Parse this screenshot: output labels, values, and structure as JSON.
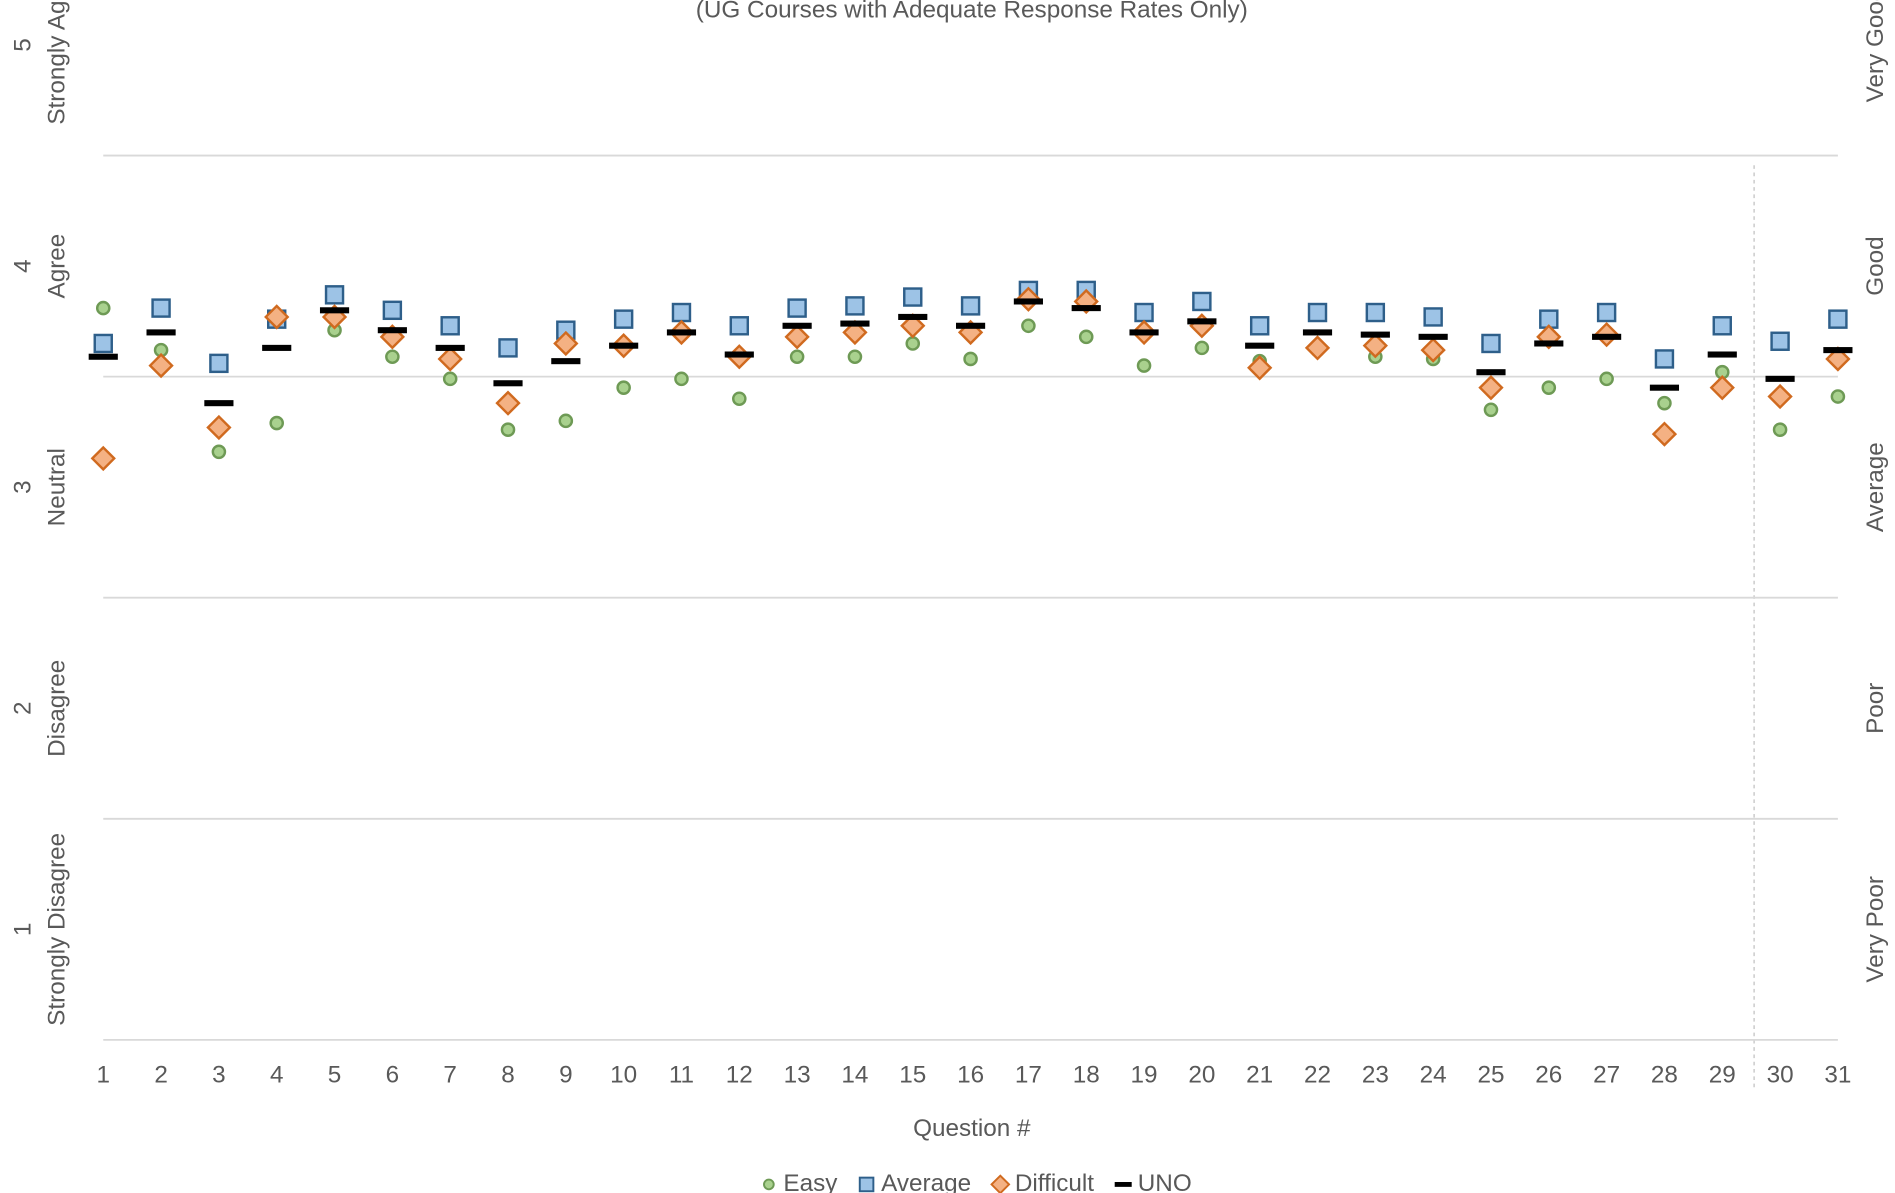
{
  "chart_data": {
    "type": "scatter",
    "subtitle": "(UG Courses with Adequate Response Rates Only)",
    "xlabel": "Question #",
    "categories": [
      "1",
      "2",
      "3",
      "4",
      "5",
      "6",
      "7",
      "8",
      "9",
      "10",
      "11",
      "12",
      "13",
      "14",
      "15",
      "16",
      "17",
      "18",
      "19",
      "20",
      "21",
      "22",
      "23",
      "24",
      "25",
      "26",
      "27",
      "28",
      "29",
      "30",
      "31"
    ],
    "series": [
      {
        "name": "Easy",
        "marker": "circle",
        "color": "#a9d18e",
        "values": [
          3.81,
          3.62,
          3.16,
          3.29,
          3.71,
          3.59,
          3.49,
          3.26,
          3.3,
          3.45,
          3.49,
          3.4,
          3.59,
          3.59,
          3.65,
          3.58,
          3.73,
          3.68,
          3.55,
          3.63,
          3.57,
          3.62,
          3.59,
          3.58,
          3.35,
          3.45,
          3.49,
          3.38,
          3.52,
          3.26,
          3.41
        ]
      },
      {
        "name": "Average",
        "marker": "square",
        "color": "#9dc3e6",
        "values": [
          3.65,
          3.81,
          3.56,
          3.76,
          3.87,
          3.8,
          3.73,
          3.63,
          3.71,
          3.76,
          3.79,
          3.73,
          3.81,
          3.82,
          3.86,
          3.82,
          3.89,
          3.89,
          3.79,
          3.84,
          3.73,
          3.79,
          3.79,
          3.77,
          3.65,
          3.76,
          3.79,
          3.58,
          3.73,
          3.66,
          3.76
        ]
      },
      {
        "name": "Difficult",
        "marker": "diamond",
        "color": "#f4b183",
        "values": [
          3.13,
          3.55,
          3.27,
          3.77,
          3.77,
          3.68,
          3.58,
          3.38,
          3.65,
          3.64,
          3.7,
          3.59,
          3.68,
          3.7,
          3.73,
          3.7,
          3.85,
          3.84,
          3.7,
          3.73,
          3.54,
          3.63,
          3.64,
          3.62,
          3.45,
          3.68,
          3.69,
          3.24,
          3.45,
          3.41,
          3.58
        ]
      },
      {
        "name": "UNO",
        "marker": "dash",
        "color": "#000000",
        "values": [
          3.59,
          3.7,
          3.38,
          3.63,
          3.8,
          3.71,
          3.63,
          3.47,
          3.57,
          3.64,
          3.7,
          3.6,
          3.73,
          3.74,
          3.77,
          3.73,
          3.84,
          3.81,
          3.7,
          3.75,
          3.64,
          3.7,
          3.69,
          3.68,
          3.52,
          3.65,
          3.68,
          3.45,
          3.6,
          3.49,
          3.62
        ]
      }
    ],
    "ylim": [
      0.5,
      5.5
    ],
    "yticks": [
      1,
      2,
      3,
      4,
      5
    ],
    "ytick_descriptions": [
      "Strongly Disagree",
      "Disagree",
      "Neutral",
      "Agree",
      "Strongly Agree"
    ],
    "y2tick_labels": [
      "Very Poor",
      "Poor",
      "Average",
      "Good",
      "Very Good"
    ],
    "ygrid": [
      0.5,
      1.5,
      2.5,
      3.5,
      4.5
    ],
    "legend": "bottom"
  }
}
